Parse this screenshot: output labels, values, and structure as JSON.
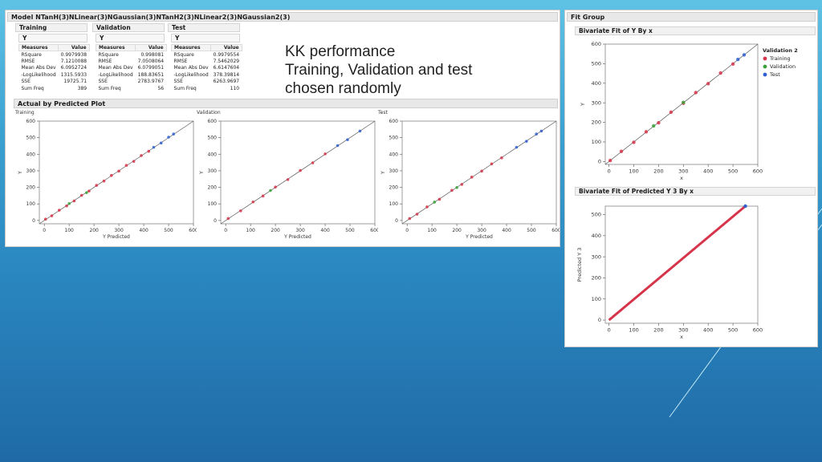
{
  "model_title": "Model NTanH(3)NLinear(3)NGaussian(3)NTanH2(3)NLinear2(3)NGaussian2(3)",
  "tables": [
    {
      "name": "Training",
      "y": "Y",
      "col_measures": "Measures",
      "col_value": "Value",
      "rows": [
        [
          "RSquare",
          "0.9979938"
        ],
        [
          "RMSE",
          "7.1210088"
        ],
        [
          "Mean Abs Dev",
          "6.0952724"
        ],
        [
          "-LogLikelihood",
          "1315.5933"
        ],
        [
          "SSE",
          "19725.71"
        ],
        [
          "Sum Freq",
          "389"
        ]
      ]
    },
    {
      "name": "Validation",
      "y": "Y",
      "col_measures": "Measures",
      "col_value": "Value",
      "rows": [
        [
          "RSquare",
          "0.998081"
        ],
        [
          "RMSE",
          "7.0508064"
        ],
        [
          "Mean Abs Dev",
          "6.0799051"
        ],
        [
          "-LogLikelihood",
          "188.83651"
        ],
        [
          "SSE",
          "2783.9767"
        ],
        [
          "Sum Freq",
          "56"
        ]
      ]
    },
    {
      "name": "Test",
      "y": "Y",
      "col_measures": "Measures",
      "col_value": "Value",
      "rows": [
        [
          "RSquare",
          "0.9979554"
        ],
        [
          "RMSE",
          "7.5462029"
        ],
        [
          "Mean Abs Dev",
          "6.6147604"
        ],
        [
          "-LogLikelihood",
          "378.39814"
        ],
        [
          "SSE",
          "6263.9697"
        ],
        [
          "Sum Freq",
          "110"
        ]
      ]
    }
  ],
  "note": {
    "line1": "KK performance",
    "line2": "Training, Validation and test",
    "line3": "chosen randomly"
  },
  "actual_pred_header": "Actual by Predicted Plot",
  "fit_group_header": "Fit Group",
  "colors": {
    "training": "#d6344a",
    "validation": "#3aa13a",
    "test": "#2f5fd0",
    "line": "#555555"
  },
  "chart_data": [
    {
      "type": "scatter",
      "title": "Training",
      "xlabel": "Y Predicted",
      "ylabel": "Y",
      "xlim": [
        -20,
        600
      ],
      "ylim": [
        -20,
        600
      ],
      "xticks": [
        0,
        100,
        200,
        300,
        400,
        500,
        600
      ],
      "yticks": [
        0,
        100,
        200,
        300,
        400,
        500,
        600
      ],
      "series": [
        {
          "values": [
            [
              5,
              8
            ],
            [
              30,
              28
            ],
            [
              60,
              62
            ],
            [
              90,
              88
            ],
            [
              120,
              118
            ],
            [
              150,
              152
            ],
            [
              180,
              178
            ],
            [
              210,
              212
            ],
            [
              240,
              238
            ],
            [
              270,
              272
            ],
            [
              300,
              298
            ],
            [
              330,
              333
            ],
            [
              360,
              357
            ],
            [
              390,
              392
            ],
            [
              420,
              418
            ]
          ]
        },
        {
          "values": [
            [
              100,
              102
            ],
            [
              170,
              168
            ]
          ]
        },
        {
          "values": [
            [
              440,
              442
            ],
            [
              470,
              468
            ],
            [
              500,
              503
            ],
            [
              520,
              522
            ]
          ]
        }
      ]
    },
    {
      "type": "scatter",
      "title": "Validation",
      "xlabel": "Y Predicted",
      "ylabel": "Y",
      "xlim": [
        -20,
        600
      ],
      "ylim": [
        -20,
        600
      ],
      "xticks": [
        0,
        100,
        200,
        300,
        400,
        500,
        600
      ],
      "yticks": [
        0,
        100,
        200,
        300,
        400,
        500,
        600
      ],
      "series": [
        {
          "values": [
            [
              10,
              12
            ],
            [
              60,
              58
            ],
            [
              110,
              112
            ],
            [
              150,
              148
            ],
            [
              200,
              202
            ],
            [
              250,
              247
            ],
            [
              300,
              302
            ],
            [
              350,
              348
            ],
            [
              400,
              402
            ]
          ]
        },
        {
          "values": [
            [
              180,
              181
            ]
          ]
        },
        {
          "values": [
            [
              450,
              452
            ],
            [
              490,
              488
            ],
            [
              540,
              540
            ]
          ]
        }
      ]
    },
    {
      "type": "scatter",
      "title": "Test",
      "xlabel": "Y Predicted",
      "ylabel": "Y",
      "xlim": [
        -20,
        600
      ],
      "ylim": [
        -20,
        600
      ],
      "xticks": [
        0,
        100,
        200,
        300,
        400,
        500,
        600
      ],
      "yticks": [
        0,
        100,
        200,
        300,
        400,
        500,
        600
      ],
      "series": [
        {
          "values": [
            [
              10,
              12
            ],
            [
              40,
              38
            ],
            [
              80,
              82
            ],
            [
              130,
              128
            ],
            [
              180,
              182
            ],
            [
              220,
              218
            ],
            [
              260,
              262
            ],
            [
              300,
              298
            ],
            [
              340,
              342
            ],
            [
              380,
              378
            ]
          ]
        },
        {
          "values": [
            [
              110,
              111
            ],
            [
              200,
              199
            ]
          ]
        },
        {
          "values": [
            [
              440,
              442
            ],
            [
              480,
              478
            ],
            [
              520,
              522
            ],
            [
              540,
              540
            ]
          ]
        }
      ]
    },
    {
      "type": "scatter",
      "title": "Bivariate Fit of Y By x",
      "xlabel": "x",
      "ylabel": "Y",
      "xlim": [
        -15,
        600
      ],
      "ylim": [
        -15,
        600
      ],
      "xticks": [
        0,
        100,
        200,
        300,
        400,
        500,
        600
      ],
      "yticks": [
        0,
        100,
        200,
        300,
        400,
        500,
        600
      ],
      "legend_title": "Validation 2",
      "legend_position": "right",
      "series": [
        {
          "name": "Training",
          "values": [
            [
              5,
              5
            ],
            [
              50,
              52
            ],
            [
              100,
              98
            ],
            [
              150,
              152
            ],
            [
              200,
              198
            ],
            [
              250,
              252
            ],
            [
              300,
              298
            ],
            [
              350,
              352
            ],
            [
              400,
              398
            ],
            [
              450,
              452
            ],
            [
              500,
              498
            ]
          ]
        },
        {
          "name": "Validation",
          "values": [
            [
              180,
              182
            ],
            [
              300,
              302
            ]
          ]
        },
        {
          "name": "Test",
          "values": [
            [
              520,
              522
            ],
            [
              545,
              545
            ]
          ]
        }
      ]
    },
    {
      "type": "line",
      "title": "Bivariate Fit of Predicted Y 3 By x",
      "xlabel": "x",
      "ylabel": "Predicted Y 3",
      "xlim": [
        -15,
        600
      ],
      "ylim": [
        -15,
        540
      ],
      "xticks": [
        0,
        100,
        200,
        300,
        400,
        500,
        600
      ],
      "yticks": [
        0,
        100,
        200,
        300,
        400,
        500
      ],
      "series": [
        {
          "values": [
            [
              0,
              0
            ],
            [
              550,
              540
            ]
          ]
        }
      ]
    }
  ]
}
